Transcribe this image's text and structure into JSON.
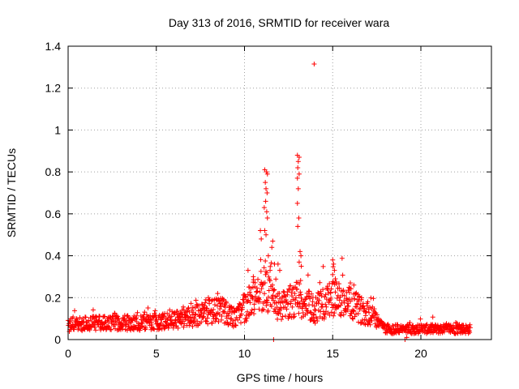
{
  "chart_data": {
    "type": "scatter",
    "title": "Day 313 of 2016, SRMTID for receiver wara",
    "xlabel": "GPS time / hours",
    "ylabel": "SRMTID / TECUs",
    "xlim": [
      0,
      24
    ],
    "ylim": [
      0,
      1.4
    ],
    "xticks": [
      0,
      5,
      10,
      15,
      20
    ],
    "xtick_labels": [
      "0",
      "5",
      "10",
      "15",
      "20"
    ],
    "yticks": [
      0,
      0.2,
      0.4,
      0.6,
      0.8,
      1,
      1.2,
      1.4
    ],
    "ytick_labels": [
      "0",
      "0.2",
      "0.4",
      "0.6",
      "0.8",
      "1",
      "1.2",
      "1.4"
    ],
    "grid": true,
    "marker": "+",
    "series": [
      {
        "name": "SRMTID",
        "color": "#ff0000",
        "x_start": 0,
        "x_end": 22.8,
        "baseline_profile": [
          [
            0,
            0.07
          ],
          [
            2,
            0.08
          ],
          [
            5,
            0.08
          ],
          [
            6.5,
            0.1
          ],
          [
            8.6,
            0.15
          ],
          [
            9.5,
            0.1
          ],
          [
            10.3,
            0.18
          ],
          [
            11.0,
            0.25
          ],
          [
            12.0,
            0.15
          ],
          [
            13.0,
            0.2
          ],
          [
            14.0,
            0.14
          ],
          [
            15.0,
            0.2
          ],
          [
            16.0,
            0.17
          ],
          [
            17.5,
            0.1
          ],
          [
            18.0,
            0.05
          ],
          [
            20.0,
            0.05
          ],
          [
            22.8,
            0.05
          ]
        ],
        "peaks": [
          {
            "x": 11.15,
            "y": 0.81
          },
          {
            "x": 11.25,
            "y": 0.8
          },
          {
            "x": 11.3,
            "y": 0.79
          },
          {
            "x": 11.18,
            "y": 0.75
          },
          {
            "x": 11.22,
            "y": 0.72
          },
          {
            "x": 11.28,
            "y": 0.7
          },
          {
            "x": 11.2,
            "y": 0.66
          },
          {
            "x": 11.12,
            "y": 0.63
          },
          {
            "x": 11.26,
            "y": 0.61
          },
          {
            "x": 11.3,
            "y": 0.58
          },
          {
            "x": 11.15,
            "y": 0.52
          },
          {
            "x": 11.22,
            "y": 0.5
          },
          {
            "x": 10.9,
            "y": 0.52
          },
          {
            "x": 10.95,
            "y": 0.48
          },
          {
            "x": 11.6,
            "y": 0.47
          },
          {
            "x": 11.55,
            "y": 0.44
          },
          {
            "x": 11.35,
            "y": 0.4
          },
          {
            "x": 11.7,
            "y": 0.36
          },
          {
            "x": 11.45,
            "y": 0.33
          },
          {
            "x": 11.9,
            "y": 0.36
          },
          {
            "x": 12.0,
            "y": 0.33
          },
          {
            "x": 11.65,
            "y": 0.0
          },
          {
            "x": 13.0,
            "y": 0.88
          },
          {
            "x": 13.1,
            "y": 0.87
          },
          {
            "x": 13.05,
            "y": 0.85
          },
          {
            "x": 13.02,
            "y": 0.82
          },
          {
            "x": 13.1,
            "y": 0.79
          },
          {
            "x": 13.0,
            "y": 0.77
          },
          {
            "x": 13.05,
            "y": 0.72
          },
          {
            "x": 13.0,
            "y": 0.65
          },
          {
            "x": 13.08,
            "y": 0.58
          },
          {
            "x": 13.02,
            "y": 0.54
          },
          {
            "x": 13.15,
            "y": 0.42
          },
          {
            "x": 13.2,
            "y": 0.4
          },
          {
            "x": 13.1,
            "y": 0.37
          },
          {
            "x": 13.22,
            "y": 0.35
          },
          {
            "x": 13.95,
            "y": 1.315
          },
          {
            "x": 15.0,
            "y": 0.38
          },
          {
            "x": 15.05,
            "y": 0.36
          },
          {
            "x": 15.1,
            "y": 0.33
          },
          {
            "x": 15.0,
            "y": 0.31
          },
          {
            "x": 15.15,
            "y": 0.29
          },
          {
            "x": 16.0,
            "y": 0.27
          },
          {
            "x": 16.2,
            "y": 0.26
          },
          {
            "x": 10.2,
            "y": 0.33
          },
          {
            "x": 10.5,
            "y": 0.3
          },
          {
            "x": 19.1,
            "y": 0.0
          },
          {
            "x": 19.2,
            "y": 0.01
          }
        ]
      }
    ]
  }
}
